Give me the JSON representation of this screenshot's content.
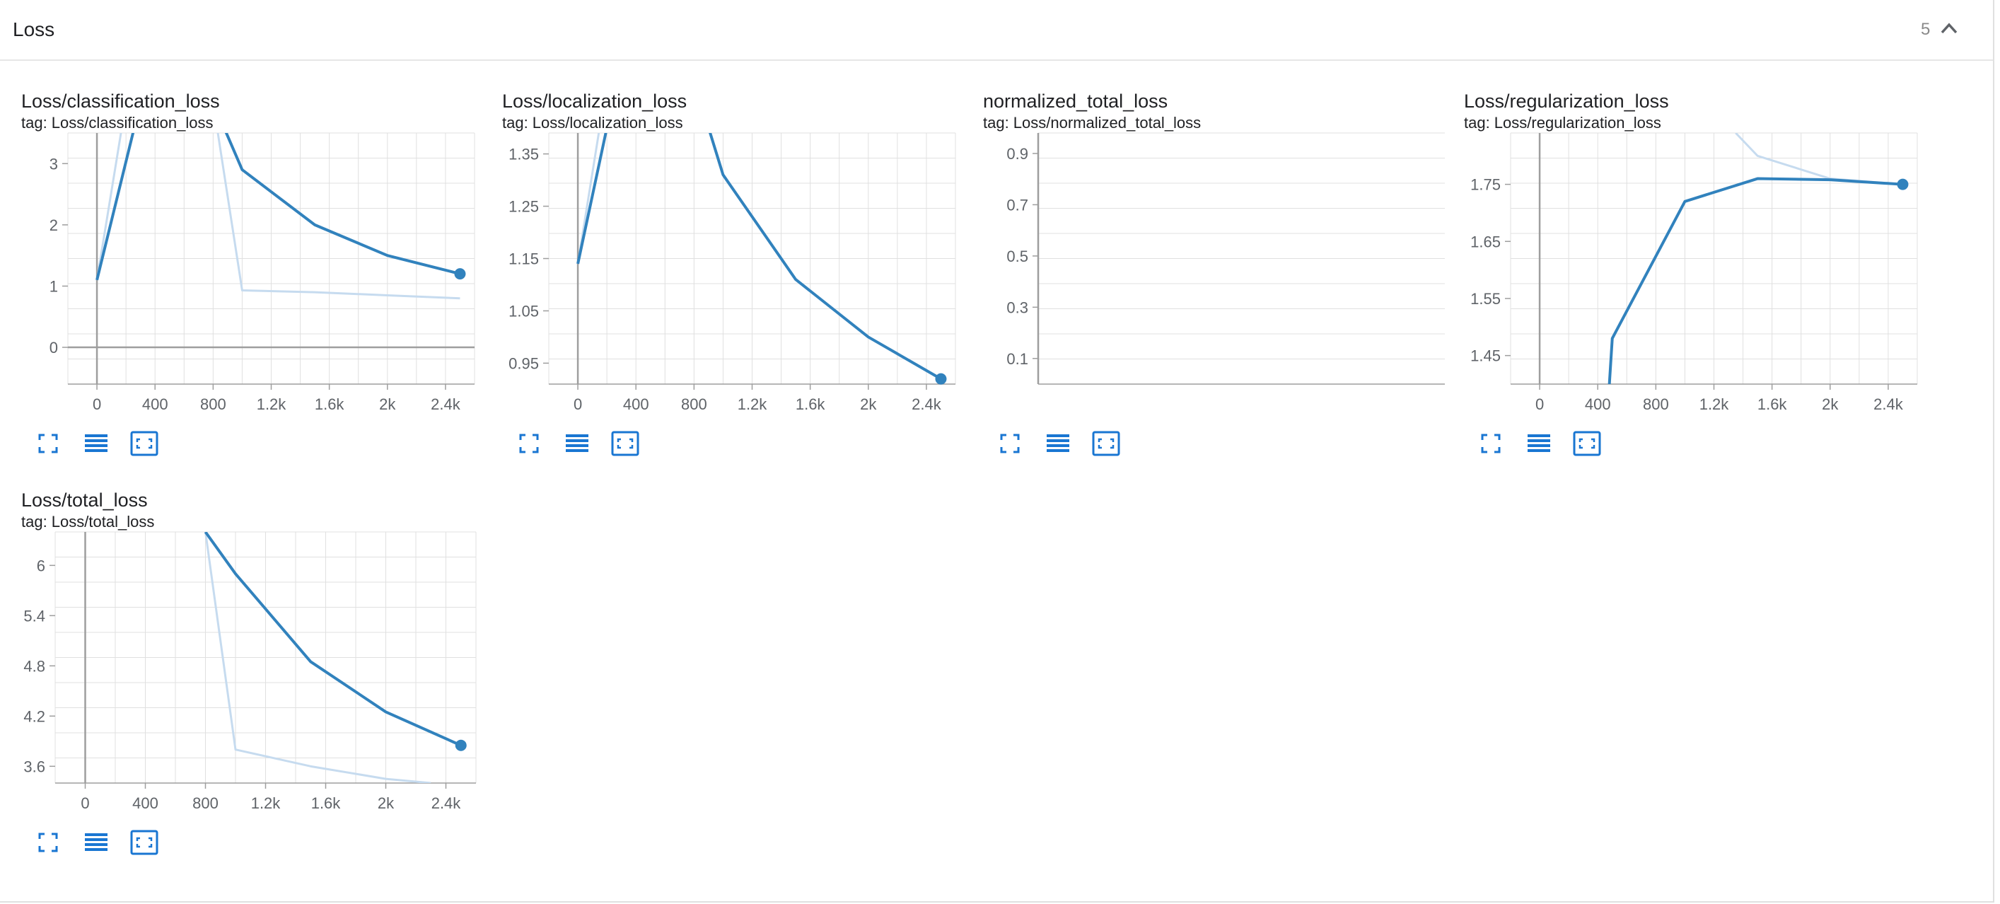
{
  "group": {
    "title": "Loss",
    "count": "5",
    "collapse_icon": "chevron-up-icon"
  },
  "colors": {
    "line": "#3182bd",
    "line_raw": "#c6dbef",
    "grid": "#e0e0e0",
    "axis": "#9e9e9e",
    "icon": "#1976d2"
  },
  "toolbar_icons": [
    "fullscreen-icon",
    "toggle-y-log-icon",
    "fit-domain-icon"
  ],
  "cards": [
    {
      "title": "Loss/classification_loss",
      "tag": "tag: Loss/classification_loss"
    },
    {
      "title": "Loss/localization_loss",
      "tag": "tag: Loss/localization_loss"
    },
    {
      "title": "normalized_total_loss",
      "tag": "tag: Loss/normalized_total_loss"
    },
    {
      "title": "Loss/regularization_loss",
      "tag": "tag: Loss/regularization_loss"
    },
    {
      "title": "Loss/total_loss",
      "tag": "tag: Loss/total_loss"
    }
  ],
  "chart_data": [
    {
      "type": "line",
      "title": "Loss/classification_loss",
      "x_ticks": [
        "0",
        "400",
        "800",
        "1.2k",
        "1.6k",
        "2k",
        "2.4k"
      ],
      "y_ticks": [
        "0",
        "1",
        "2",
        "3"
      ],
      "xlim": [
        -200,
        2600
      ],
      "ylim": [
        -0.6,
        3.5
      ],
      "grid": true,
      "series": [
        {
          "x": [
            0,
            300,
            800,
            1000,
            1500,
            2000,
            2500
          ],
          "y": [
            1.1,
            4.0,
            4.0,
            2.9,
            2.0,
            1.5,
            1.2
          ]
        },
        {
          "x": [
            0,
            200,
            800,
            1000,
            1500,
            2000,
            2500
          ],
          "y": [
            1.1,
            4.0,
            4.0,
            0.93,
            0.9,
            0.85,
            0.8
          ]
        }
      ]
    },
    {
      "type": "line",
      "title": "Loss/localization_loss",
      "x_ticks": [
        "0",
        "400",
        "800",
        "1.2k",
        "1.6k",
        "2k",
        "2.4k"
      ],
      "y_ticks": [
        "0.95",
        "1.05",
        "1.15",
        "1.25",
        "1.35"
      ],
      "xlim": [
        -200,
        2600
      ],
      "ylim": [
        0.91,
        1.39
      ],
      "grid": true,
      "series": [
        {
          "x": [
            0,
            200,
            900,
            1000,
            1500,
            2000,
            2500
          ],
          "y": [
            1.14,
            1.4,
            1.4,
            1.31,
            1.11,
            1.0,
            0.92
          ]
        },
        {
          "x": [
            0,
            150,
            900
          ],
          "y": [
            1.14,
            1.4,
            1.4
          ]
        }
      ]
    },
    {
      "type": "line",
      "title": "normalized_total_loss",
      "x_ticks": [],
      "y_ticks": [
        "0.1",
        "0.3",
        "0.5",
        "0.7",
        "0.9"
      ],
      "ylim": [
        0.0,
        0.98
      ],
      "grid": true,
      "series": []
    },
    {
      "type": "line",
      "title": "Loss/regularization_loss",
      "x_ticks": [
        "0",
        "400",
        "800",
        "1.2k",
        "1.6k",
        "2k",
        "2.4k"
      ],
      "y_ticks": [
        "1.45",
        "1.55",
        "1.65",
        "1.75"
      ],
      "xlim": [
        -200,
        2600
      ],
      "ylim": [
        1.4,
        1.84
      ],
      "grid": true,
      "series": [
        {
          "x": [
            480,
            500,
            1000,
            1500,
            2000,
            2500
          ],
          "y": [
            1.4,
            1.48,
            1.72,
            1.76,
            1.758,
            1.75
          ]
        },
        {
          "x": [
            1350,
            1500,
            2000,
            2500
          ],
          "y": [
            1.84,
            1.8,
            1.76,
            1.75
          ]
        }
      ]
    },
    {
      "type": "line",
      "title": "Loss/total_loss",
      "x_ticks": [
        "0",
        "400",
        "800",
        "1.2k",
        "1.6k",
        "2k",
        "2.4k"
      ],
      "y_ticks": [
        "3.6",
        "4.2",
        "4.8",
        "5.4",
        "6"
      ],
      "xlim": [
        -200,
        2600
      ],
      "ylim": [
        3.4,
        6.4
      ],
      "grid": true,
      "series": [
        {
          "x": [
            800,
            1000,
            1500,
            2000,
            2500
          ],
          "y": [
            6.4,
            5.9,
            4.85,
            4.25,
            3.85
          ]
        },
        {
          "x": [
            800,
            1000,
            1500,
            2000,
            2300
          ],
          "y": [
            6.4,
            3.8,
            3.6,
            3.45,
            3.4
          ]
        }
      ]
    }
  ]
}
